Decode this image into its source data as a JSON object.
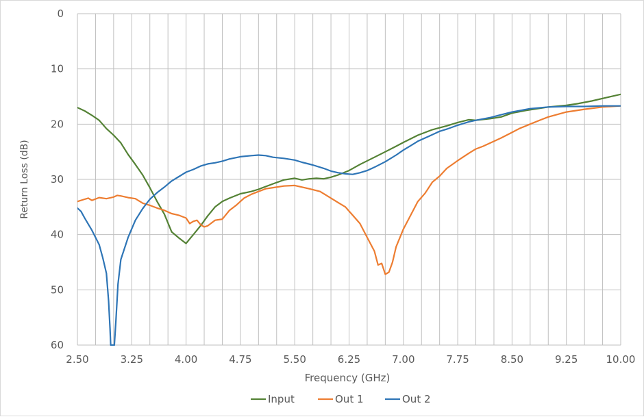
{
  "chart_data": {
    "type": "line",
    "title": "",
    "xlabel": "Frequency (GHz)",
    "ylabel": "Return Loss (dB)",
    "xlim": [
      2.5,
      10.0
    ],
    "ylim": [
      0,
      60
    ],
    "y_inverted": true,
    "grid": true,
    "legend_position": "bottom",
    "x_ticks": [
      "2.50",
      "3.25",
      "4.00",
      "4.75",
      "5.50",
      "6.25",
      "7.00",
      "7.75",
      "8.50",
      "9.25",
      "10.00"
    ],
    "x_tick_values": [
      2.5,
      3.25,
      4.0,
      4.75,
      5.5,
      6.25,
      7.0,
      7.75,
      8.5,
      9.25,
      10.0
    ],
    "y_ticks": [
      "0",
      "10",
      "20",
      "30",
      "40",
      "50",
      "60"
    ],
    "y_tick_values": [
      0,
      10,
      20,
      30,
      40,
      50,
      60
    ],
    "series": [
      {
        "name": "Input",
        "color": "#548235",
        "points": [
          [
            2.5,
            17.0
          ],
          [
            2.6,
            17.6
          ],
          [
            2.7,
            18.4
          ],
          [
            2.8,
            19.3
          ],
          [
            2.9,
            20.8
          ],
          [
            3.0,
            22.0
          ],
          [
            3.1,
            23.4
          ],
          [
            3.2,
            25.5
          ],
          [
            3.3,
            27.3
          ],
          [
            3.4,
            29.2
          ],
          [
            3.5,
            31.5
          ],
          [
            3.6,
            34.0
          ],
          [
            3.7,
            36.3
          ],
          [
            3.8,
            39.5
          ],
          [
            3.9,
            40.6
          ],
          [
            4.0,
            41.6
          ],
          [
            4.05,
            40.8
          ],
          [
            4.1,
            40.0
          ],
          [
            4.2,
            38.4
          ],
          [
            4.3,
            36.6
          ],
          [
            4.4,
            35.0
          ],
          [
            4.5,
            34.0
          ],
          [
            4.6,
            33.4
          ],
          [
            4.75,
            32.6
          ],
          [
            4.9,
            32.2
          ],
          [
            5.0,
            31.8
          ],
          [
            5.2,
            30.8
          ],
          [
            5.35,
            30.1
          ],
          [
            5.5,
            29.8
          ],
          [
            5.6,
            30.1
          ],
          [
            5.7,
            29.9
          ],
          [
            5.8,
            29.8
          ],
          [
            5.9,
            29.9
          ],
          [
            6.0,
            29.6
          ],
          [
            6.1,
            29.2
          ],
          [
            6.25,
            28.4
          ],
          [
            6.4,
            27.3
          ],
          [
            6.6,
            26.0
          ],
          [
            6.75,
            25.0
          ],
          [
            6.9,
            24.0
          ],
          [
            7.0,
            23.3
          ],
          [
            7.2,
            22.0
          ],
          [
            7.4,
            21.0
          ],
          [
            7.6,
            20.3
          ],
          [
            7.75,
            19.7
          ],
          [
            7.9,
            19.2
          ],
          [
            8.0,
            19.3
          ],
          [
            8.2,
            19.0
          ],
          [
            8.35,
            18.7
          ],
          [
            8.5,
            18.0
          ],
          [
            8.7,
            17.5
          ],
          [
            8.9,
            17.1
          ],
          [
            9.0,
            16.9
          ],
          [
            9.25,
            16.6
          ],
          [
            9.4,
            16.3
          ],
          [
            9.6,
            15.8
          ],
          [
            9.8,
            15.2
          ],
          [
            10.0,
            14.6
          ]
        ]
      },
      {
        "name": "Out 1",
        "color": "#ed7d31",
        "points": [
          [
            2.5,
            34.0
          ],
          [
            2.6,
            33.6
          ],
          [
            2.65,
            33.4
          ],
          [
            2.7,
            33.8
          ],
          [
            2.8,
            33.3
          ],
          [
            2.9,
            33.5
          ],
          [
            3.0,
            33.2
          ],
          [
            3.05,
            32.9
          ],
          [
            3.1,
            33.0
          ],
          [
            3.2,
            33.3
          ],
          [
            3.3,
            33.5
          ],
          [
            3.4,
            34.3
          ],
          [
            3.5,
            34.7
          ],
          [
            3.6,
            35.2
          ],
          [
            3.7,
            35.6
          ],
          [
            3.8,
            36.2
          ],
          [
            3.9,
            36.5
          ],
          [
            4.0,
            37.0
          ],
          [
            4.05,
            38.0
          ],
          [
            4.1,
            37.6
          ],
          [
            4.15,
            37.4
          ],
          [
            4.2,
            38.2
          ],
          [
            4.25,
            38.6
          ],
          [
            4.3,
            38.4
          ],
          [
            4.4,
            37.4
          ],
          [
            4.5,
            37.2
          ],
          [
            4.6,
            35.6
          ],
          [
            4.7,
            34.6
          ],
          [
            4.8,
            33.4
          ],
          [
            4.9,
            32.7
          ],
          [
            5.0,
            32.2
          ],
          [
            5.1,
            31.7
          ],
          [
            5.2,
            31.5
          ],
          [
            5.35,
            31.2
          ],
          [
            5.5,
            31.1
          ],
          [
            5.6,
            31.4
          ],
          [
            5.7,
            31.7
          ],
          [
            5.85,
            32.2
          ],
          [
            6.0,
            33.4
          ],
          [
            6.1,
            34.2
          ],
          [
            6.2,
            35.0
          ],
          [
            6.3,
            36.5
          ],
          [
            6.4,
            38.0
          ],
          [
            6.5,
            40.5
          ],
          [
            6.6,
            43.0
          ],
          [
            6.65,
            45.5
          ],
          [
            6.7,
            45.2
          ],
          [
            6.75,
            47.2
          ],
          [
            6.8,
            46.8
          ],
          [
            6.85,
            45.0
          ],
          [
            6.9,
            42.2
          ],
          [
            7.0,
            39.0
          ],
          [
            7.1,
            36.5
          ],
          [
            7.2,
            34.0
          ],
          [
            7.3,
            32.5
          ],
          [
            7.4,
            30.5
          ],
          [
            7.5,
            29.4
          ],
          [
            7.6,
            28.0
          ],
          [
            7.75,
            26.6
          ],
          [
            7.9,
            25.3
          ],
          [
            8.0,
            24.5
          ],
          [
            8.1,
            24.0
          ],
          [
            8.2,
            23.4
          ],
          [
            8.35,
            22.5
          ],
          [
            8.5,
            21.5
          ],
          [
            8.6,
            20.8
          ],
          [
            8.75,
            20.0
          ],
          [
            8.9,
            19.2
          ],
          [
            9.0,
            18.7
          ],
          [
            9.25,
            17.8
          ],
          [
            9.5,
            17.3
          ],
          [
            9.75,
            16.9
          ],
          [
            10.0,
            16.7
          ]
        ]
      },
      {
        "name": "Out 2",
        "color": "#2e75b6",
        "points": [
          [
            2.5,
            35.2
          ],
          [
            2.55,
            35.8
          ],
          [
            2.6,
            37.0
          ],
          [
            2.7,
            39.2
          ],
          [
            2.8,
            41.8
          ],
          [
            2.85,
            44.2
          ],
          [
            2.9,
            47.0
          ],
          [
            2.93,
            52.0
          ],
          [
            2.95,
            57.0
          ],
          [
            2.96,
            60.0
          ],
          [
            3.01,
            60.0
          ],
          [
            3.03,
            56.0
          ],
          [
            3.06,
            49.0
          ],
          [
            3.1,
            44.5
          ],
          [
            3.2,
            40.5
          ],
          [
            3.3,
            37.4
          ],
          [
            3.4,
            35.3
          ],
          [
            3.5,
            33.6
          ],
          [
            3.6,
            32.4
          ],
          [
            3.7,
            31.4
          ],
          [
            3.8,
            30.3
          ],
          [
            3.9,
            29.5
          ],
          [
            4.0,
            28.7
          ],
          [
            4.1,
            28.2
          ],
          [
            4.2,
            27.6
          ],
          [
            4.3,
            27.2
          ],
          [
            4.4,
            27.0
          ],
          [
            4.5,
            26.7
          ],
          [
            4.6,
            26.3
          ],
          [
            4.75,
            25.9
          ],
          [
            4.9,
            25.7
          ],
          [
            5.0,
            25.6
          ],
          [
            5.1,
            25.7
          ],
          [
            5.2,
            26.0
          ],
          [
            5.35,
            26.2
          ],
          [
            5.5,
            26.5
          ],
          [
            5.6,
            26.9
          ],
          [
            5.75,
            27.4
          ],
          [
            5.9,
            28.0
          ],
          [
            6.0,
            28.5
          ],
          [
            6.1,
            28.8
          ],
          [
            6.2,
            29.0
          ],
          [
            6.3,
            29.1
          ],
          [
            6.4,
            28.8
          ],
          [
            6.5,
            28.4
          ],
          [
            6.6,
            27.8
          ],
          [
            6.75,
            26.8
          ],
          [
            6.9,
            25.6
          ],
          [
            7.0,
            24.7
          ],
          [
            7.1,
            23.9
          ],
          [
            7.2,
            23.1
          ],
          [
            7.35,
            22.2
          ],
          [
            7.5,
            21.3
          ],
          [
            7.6,
            20.9
          ],
          [
            7.75,
            20.2
          ],
          [
            7.9,
            19.6
          ],
          [
            8.0,
            19.3
          ],
          [
            8.2,
            18.8
          ],
          [
            8.35,
            18.3
          ],
          [
            8.5,
            17.8
          ],
          [
            8.75,
            17.2
          ],
          [
            9.0,
            16.9
          ],
          [
            9.25,
            16.8
          ],
          [
            9.5,
            16.8
          ],
          [
            9.75,
            16.7
          ],
          [
            10.0,
            16.7
          ]
        ]
      }
    ]
  }
}
